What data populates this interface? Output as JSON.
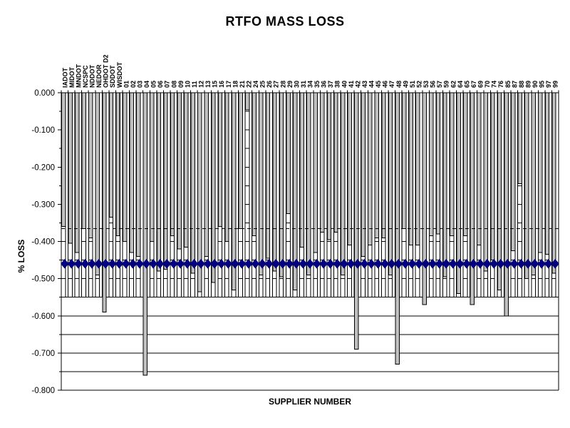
{
  "title": "RTFO MASS LOSS",
  "xlabel": "SUPPLIER NUMBER",
  "ylabel": "% LOSS",
  "y_axis": {
    "min": -0.8,
    "max": 0.0,
    "major_unit": 0.1,
    "minor_unit": 0.05,
    "tick_labels": [
      "0.000",
      "-0.100",
      "-0.200",
      "-0.300",
      "-0.400",
      "-0.500",
      "-0.600",
      "-0.700",
      "-0.800"
    ]
  },
  "colors": {
    "bar_fill": "#c0c0c0",
    "bar_outline": "#000000",
    "reference_bar_fill": "#ffffff",
    "marker_line": "#000080",
    "grid": "#000000",
    "background": "#ffffff"
  },
  "chart_data": {
    "type": "bar",
    "title": "RTFO MASS LOSS",
    "xlabel": "SUPPLIER NUMBER",
    "ylabel": "% LOSS",
    "ylim": [
      -0.8,
      0.0
    ],
    "grid": "horizontal-minor-0.05",
    "legend": "none",
    "categories": [
      "IADOT",
      "MIDOT",
      "MNDOT",
      "NCSPC",
      "NDDOT",
      "NEDOR",
      "OHDOT D2",
      "SDDOT",
      "WISDOT",
      "01",
      "02",
      "03",
      "04",
      "05",
      "06",
      "07",
      "08",
      "09",
      "10",
      "11",
      "12",
      "13",
      "15",
      "16",
      "17",
      "18",
      "21",
      "22",
      "24",
      "25",
      "26",
      "27",
      "28",
      "29",
      "30",
      "31",
      "34",
      "35",
      "36",
      "37",
      "38",
      "40",
      "41",
      "42",
      "43",
      "44",
      "45",
      "46",
      "47",
      "48",
      "49",
      "51",
      "52",
      "53",
      "56",
      "57",
      "59",
      "62",
      "64",
      "65",
      "67",
      "69",
      "70",
      "74",
      "76",
      "85",
      "87",
      "88",
      "89",
      "90",
      "95",
      "97",
      "99"
    ],
    "series": [
      {
        "name": "supplier RTFO mass loss (gray bars)",
        "type": "bar",
        "values": [
          -0.36,
          -0.405,
          -0.43,
          -0.365,
          -0.39,
          -0.49,
          -0.59,
          -0.335,
          -0.385,
          -0.4,
          -0.43,
          -0.44,
          -0.76,
          -0.4,
          -0.48,
          -0.475,
          -0.385,
          -0.42,
          -0.415,
          -0.485,
          -0.535,
          -0.44,
          -0.51,
          -0.36,
          -0.4,
          -0.53,
          -0.365,
          -0.046,
          -0.385,
          -0.49,
          -0.445,
          -0.48,
          -0.495,
          -0.325,
          -0.53,
          -0.415,
          -0.49,
          -0.43,
          -0.375,
          -0.395,
          -0.375,
          -0.49,
          -0.41,
          -0.69,
          -0.44,
          -0.41,
          -0.39,
          -0.39,
          -0.49,
          -0.73,
          -0.365,
          -0.41,
          -0.41,
          -0.57,
          -0.385,
          -0.38,
          -0.495,
          -0.385,
          -0.54,
          -0.385,
          -0.57,
          -0.41,
          -0.48,
          -0.45,
          -0.53,
          -0.6,
          -0.425,
          -0.245,
          -0.5,
          -0.49,
          -0.43,
          -0.435,
          -0.485
        ]
      },
      {
        "name": "reference bars (white, constant)",
        "type": "bar",
        "constant_value": -0.55
      },
      {
        "name": "average line (navy diamonds)",
        "type": "line-markers",
        "constant_value": -0.46
      },
      {
        "name": "dashed reference line",
        "type": "dashed-line",
        "constant_value": -0.365
      }
    ]
  }
}
